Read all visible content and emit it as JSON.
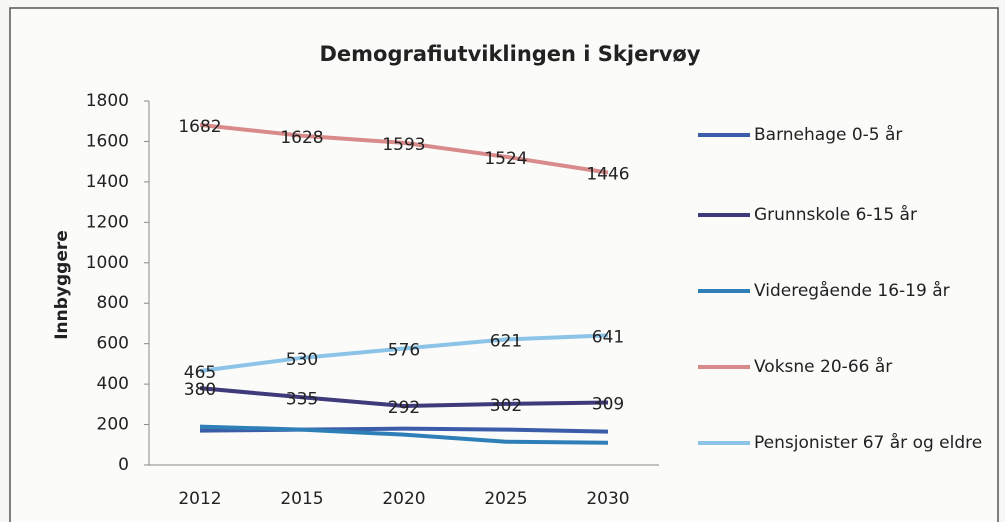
{
  "chart_data": {
    "type": "line",
    "title": "Demografiutviklingen i Skjervøy",
    "y_label": "Innbyggere",
    "categories": [
      "2012",
      "2015",
      "2020",
      "2025",
      "2030"
    ],
    "ylim": [
      0,
      1800
    ],
    "yticks": [
      0,
      200,
      400,
      600,
      800,
      1000,
      1200,
      1400,
      1600,
      1800
    ],
    "grid": false,
    "legend": "right",
    "series": [
      {
        "name": "Barnehage 0-5 år",
        "color": "#3b5ca8",
        "values": [
          170,
          175,
          180,
          175,
          165
        ],
        "data_labels": false
      },
      {
        "name": "Grunnskole 6-15 år",
        "color": "#3f3a7a",
        "values": [
          380,
          335,
          292,
          302,
          309
        ],
        "data_labels": true
      },
      {
        "name": "Videregående 16-19 år",
        "color": "#2e7fb8",
        "values": [
          190,
          175,
          150,
          115,
          110
        ],
        "data_labels": false
      },
      {
        "name": "Voksne 20-66 år",
        "color": "#d98b8b",
        "values": [
          1682,
          1628,
          1593,
          1524,
          1446
        ],
        "data_labels": true
      },
      {
        "name": "Pensjonister 67 år og eldre",
        "color": "#8cc4e8",
        "values": [
          465,
          530,
          576,
          621,
          641
        ],
        "data_labels": true
      }
    ]
  }
}
